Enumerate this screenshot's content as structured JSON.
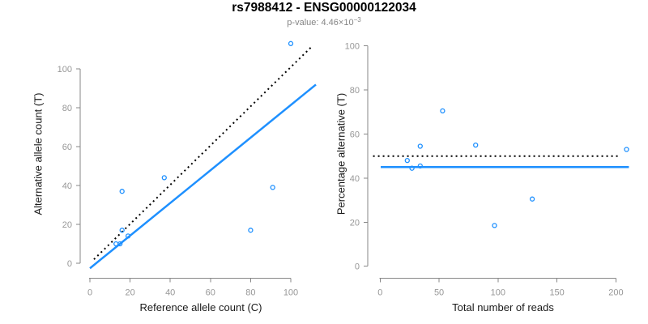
{
  "header": {
    "title": "rs7988412 - ENSG00000122034",
    "subtitle_prefix": "p-value: 4.46×10",
    "subtitle_exponent": "−3"
  },
  "colors": {
    "point_blue": "#1E90FF",
    "axis_line_gray": "#878787",
    "tick_label_gray": "#979797",
    "axis_title_color": "#1a1a1a",
    "subtitle_gray": "#848484",
    "reference_line_black": "#000000"
  },
  "chart_data": [
    {
      "type": "scatter",
      "panel": "left",
      "xlabel": "Reference allele count (C)",
      "ylabel": "Alternative allele count (T)",
      "xticks": [
        0,
        20,
        40,
        60,
        80,
        100
      ],
      "yticks": [
        0,
        20,
        40,
        60,
        80,
        100
      ],
      "xlim": [
        0,
        110
      ],
      "ylim": [
        0,
        115
      ],
      "grid": false,
      "legend": "none",
      "points": [
        [
          100,
          113
        ],
        [
          37,
          44
        ],
        [
          16,
          37
        ],
        [
          16,
          17
        ],
        [
          19,
          14
        ],
        [
          15,
          10
        ],
        [
          13,
          10
        ],
        [
          80,
          17
        ],
        [
          91,
          39
        ]
      ],
      "lines": [
        {
          "name": "identity-dotted-line",
          "style": "dotted",
          "color": "#000000",
          "x1": 2,
          "y1": 2,
          "x2": 111,
          "y2": 112
        },
        {
          "name": "fit-solid-line",
          "style": "solid",
          "color": "#1E90FF",
          "x1": 0,
          "y1": -2.6,
          "x2": 112.5,
          "y2": 91.9
        }
      ]
    },
    {
      "type": "scatter",
      "panel": "right",
      "xlabel": "Total number of reads",
      "ylabel": "Percentage alternative (T)",
      "xticks": [
        0,
        50,
        100,
        150,
        200
      ],
      "yticks": [
        0,
        20,
        40,
        60,
        80,
        100
      ],
      "xlim": [
        0,
        215
      ],
      "ylim": [
        0,
        100
      ],
      "grid": false,
      "legend": "none",
      "points": [
        [
          23,
          48
        ],
        [
          27,
          44.5
        ],
        [
          34,
          54.5
        ],
        [
          34,
          45.5
        ],
        [
          53,
          70.5
        ],
        [
          81,
          55
        ],
        [
          97,
          18.5
        ],
        [
          129,
          30.5
        ],
        [
          209,
          53
        ]
      ],
      "lines": [
        {
          "name": "expected-50pct-dotted-line",
          "style": "dotted",
          "color": "#000000",
          "x1": -6,
          "y1": 50,
          "x2": 204,
          "y2": 50
        },
        {
          "name": "mean-percentage-solid-line",
          "style": "solid",
          "color": "#1E90FF",
          "x1": 0.5,
          "y1": 45,
          "x2": 211,
          "y2": 45
        }
      ]
    }
  ]
}
